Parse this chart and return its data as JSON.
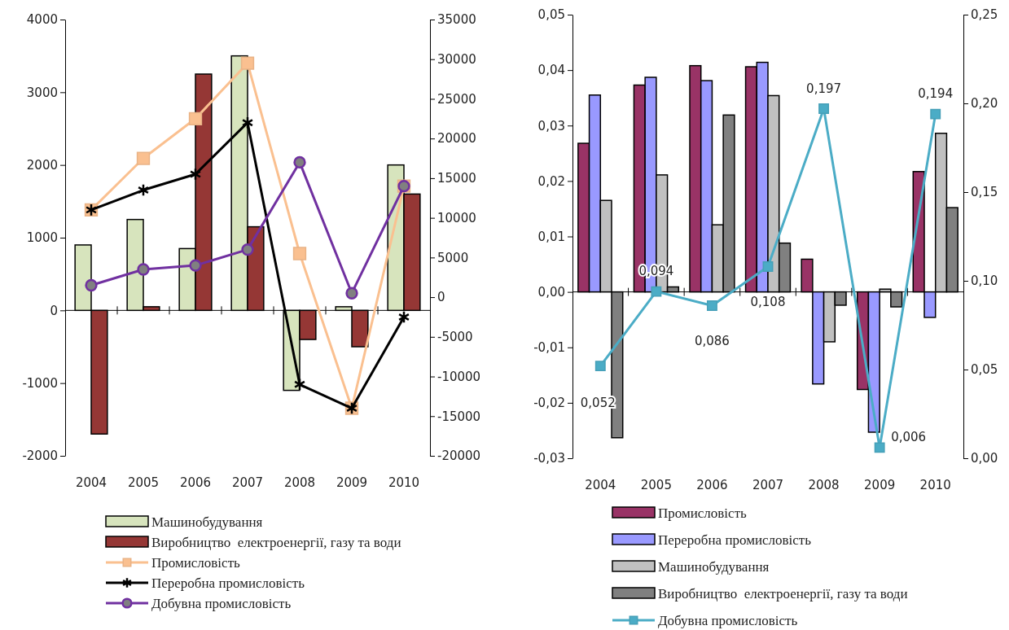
{
  "chart_data": [
    {
      "type": "bar",
      "categories": [
        "2004",
        "2005",
        "2006",
        "2007",
        "2008",
        "2009",
        "2010"
      ],
      "ylim": [
        -2000,
        4000
      ],
      "yticks": [
        -2000,
        -1000,
        0,
        1000,
        2000,
        3000,
        4000
      ],
      "y2lim": [
        -20000,
        35000
      ],
      "y2ticks": [
        -20000,
        -15000,
        -10000,
        -5000,
        0,
        5000,
        10000,
        15000,
        20000,
        25000,
        30000,
        35000
      ],
      "legend": "bottom",
      "series": [
        {
          "name": "Машинобудування",
          "color": "#d7e4bd",
          "values": [
            900,
            1250,
            850,
            3500,
            -1100,
            50,
            2000
          ]
        },
        {
          "name": "Виробництво  електроенергії, газу та води",
          "color": "#953735",
          "values": [
            -1700,
            50,
            3250,
            1150,
            -400,
            -500,
            1600
          ]
        },
        {
          "name": "Промисловість",
          "type": "line",
          "axis": "y2",
          "marker": "square",
          "color": "#fac090",
          "values": [
            11000,
            17500,
            22500,
            29500,
            5500,
            -14000,
            14000
          ]
        },
        {
          "name": "Переробна промисловість",
          "type": "line",
          "axis": "y2",
          "marker": "cross",
          "color": "#000000",
          "values": [
            11000,
            13500,
            15500,
            22000,
            -11000,
            -14000,
            -2500
          ]
        },
        {
          "name": "Добувна промисловість",
          "type": "line",
          "axis": "y2",
          "marker": "circle",
          "color": "#7030a0",
          "values": [
            1500,
            3500,
            4000,
            6000,
            17000,
            500,
            14000
          ]
        }
      ]
    },
    {
      "type": "bar",
      "categories": [
        "2004",
        "2005",
        "2006",
        "2007",
        "2008",
        "2009",
        "2010"
      ],
      "ylim": [
        -0.03,
        0.05
      ],
      "yticks": [
        {
          "value": -0.03,
          "label": "-0,03"
        },
        {
          "value": -0.02,
          "label": "-0,02"
        },
        {
          "value": -0.01,
          "label": "-0,01"
        },
        {
          "value": 0,
          "label": "0,00"
        },
        {
          "value": 0.01,
          "label": "0,01"
        },
        {
          "value": 0.02,
          "label": "0,02"
        },
        {
          "value": 0.03,
          "label": "0,03"
        },
        {
          "value": 0.04,
          "label": "0,04"
        },
        {
          "value": 0.05,
          "label": "0,05"
        }
      ],
      "y2lim": [
        0,
        0.25
      ],
      "y2ticks": [
        {
          "value": 0,
          "label": "0,00"
        },
        {
          "value": 0.05,
          "label": "0,05"
        },
        {
          "value": 0.1,
          "label": "0,10"
        },
        {
          "value": 0.15,
          "label": "0,15"
        },
        {
          "value": 0.2,
          "label": "0,20"
        },
        {
          "value": 0.25,
          "label": "0,25"
        }
      ],
      "legend": "bottom",
      "series": [
        {
          "name": "Промисловість",
          "color": "#993366",
          "values": [
            0.0268,
            0.0373,
            0.0408,
            0.0406,
            0.0059,
            -0.0176,
            0.0217
          ]
        },
        {
          "name": "Переробна промисловість",
          "color": "#9999ff",
          "values": [
            0.0355,
            0.0387,
            0.0381,
            0.0414,
            -0.0166,
            -0.0253,
            -0.0046
          ]
        },
        {
          "name": "Машинобудування",
          "color": "#c0c0c0",
          "values": [
            0.0165,
            0.0211,
            0.0121,
            0.0354,
            -0.009,
            0.0005,
            0.0286
          ]
        },
        {
          "name": "Виробництво  електроенергії, газу та води",
          "color": "#808080",
          "values": [
            -0.0263,
            0.0009,
            0.0319,
            0.0088,
            -0.0024,
            -0.0027,
            0.0152
          ]
        },
        {
          "name": "Добувна промисловість",
          "type": "line",
          "axis": "y2",
          "marker": "square",
          "color": "#4bacc6",
          "values": [
            0.052,
            0.094,
            0.086,
            0.108,
            0.197,
            0.006,
            0.194
          ],
          "value_labels": [
            "0,052",
            "0,094",
            "0,086",
            "0,108",
            "0,197",
            "0,006",
            "0,194"
          ]
        }
      ]
    }
  ]
}
